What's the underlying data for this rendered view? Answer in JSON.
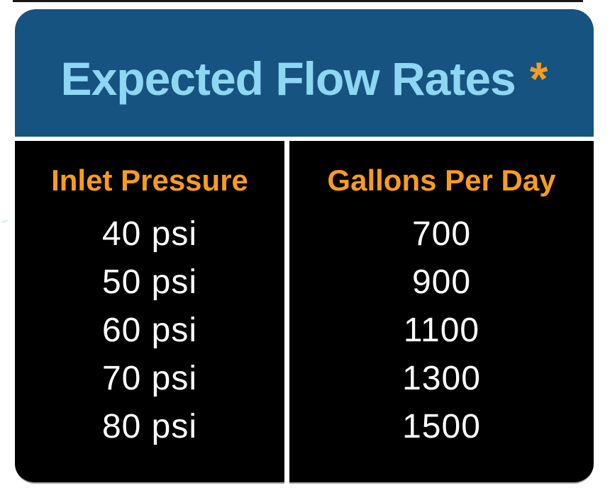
{
  "header": {
    "title": "Expected Flow Rates",
    "asterisk": "*"
  },
  "table": {
    "columns": [
      {
        "header": "Inlet Pressure",
        "values": [
          "40 psi",
          "50 psi",
          "60 psi",
          "70 psi",
          "80 psi"
        ]
      },
      {
        "header": "Gallons Per Day",
        "values": [
          "700",
          "900",
          "1100",
          "1300",
          "1500"
        ]
      }
    ]
  },
  "colors": {
    "banner_bg": "#165380",
    "title_text": "#8fd6f3",
    "accent_orange": "#f89c1e",
    "panel_bg": "#000000",
    "value_text": "#ffffff",
    "bottom_hairline": "#9c9c9c",
    "top_hairline": "#161616"
  },
  "chart_data": {
    "type": "table",
    "title": "Expected Flow Rates *",
    "columns": [
      "Inlet Pressure",
      "Gallons Per Day"
    ],
    "rows": [
      [
        "40 psi",
        700
      ],
      [
        "50 psi",
        900
      ],
      [
        "60 psi",
        1100
      ],
      [
        "70 psi",
        1300
      ],
      [
        "80 psi",
        1500
      ]
    ],
    "inlet_pressure_psi": [
      40,
      50,
      60,
      70,
      80
    ],
    "gallons_per_day": [
      700,
      900,
      1100,
      1300,
      1500
    ]
  }
}
